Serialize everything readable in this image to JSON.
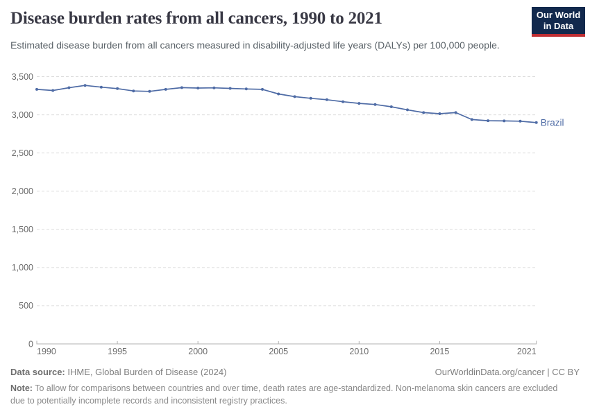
{
  "header": {
    "title": "Disease burden rates from all cancers, 1990 to 2021",
    "subtitle": "Estimated disease burden from all cancers measured in disability-adjusted life years (DALYs) per 100,000 people.",
    "logo": {
      "line1": "Our World",
      "line2": "in Data"
    }
  },
  "colors": {
    "series_blue": "#4e6ba5",
    "grid": "#dcdcdc",
    "axis": "#b0b0b0",
    "tick_text": "#6b6b6b",
    "logo_navy": "#12294d",
    "logo_red": "#bf2e33",
    "title_text": "#383844"
  },
  "chart_data": {
    "type": "line",
    "title": "Disease burden rates from all cancers, 1990 to 2021",
    "ylabel": "DALYs per 100,000 people",
    "ylim": [
      0,
      3500
    ],
    "yticks": [
      0,
      500,
      1000,
      1500,
      2000,
      2500,
      3000,
      3500
    ],
    "ytick_labels": [
      "0",
      "500",
      "1,000",
      "1,500",
      "2,000",
      "2,500",
      "3,000",
      "3,500"
    ],
    "xticks": [
      1990,
      1995,
      2000,
      2005,
      2010,
      2015,
      2021
    ],
    "grid": "horizontal-dashed",
    "legend": "end-of-line-label",
    "x": [
      1990,
      1991,
      1992,
      1993,
      1994,
      1995,
      1996,
      1997,
      1998,
      1999,
      2000,
      2001,
      2002,
      2003,
      2004,
      2005,
      2006,
      2007,
      2008,
      2009,
      2010,
      2011,
      2012,
      2013,
      2014,
      2015,
      2016,
      2017,
      2018,
      2019,
      2020,
      2021
    ],
    "series": [
      {
        "name": "Brazil",
        "color": "#4e6ba5",
        "values": [
          3333,
          3318,
          3355,
          3385,
          3362,
          3343,
          3312,
          3307,
          3333,
          3356,
          3350,
          3353,
          3346,
          3338,
          3333,
          3273,
          3238,
          3216,
          3198,
          3171,
          3150,
          3135,
          3105,
          3065,
          3029,
          3014,
          3029,
          2938,
          2923,
          2920,
          2916,
          2898
        ]
      }
    ]
  },
  "footer": {
    "datasource_label": "Data source:",
    "datasource_text": " IHME, Global Burden of Disease (2024)",
    "license_text": "OurWorldinData.org/cancer | CC BY",
    "note_label": "Note:",
    "note_text": " To allow for comparisons between countries and over time, death rates are age-standardized. Non-melanoma skin cancers are excluded due to potentially incomplete records and inconsistent registry practices."
  }
}
